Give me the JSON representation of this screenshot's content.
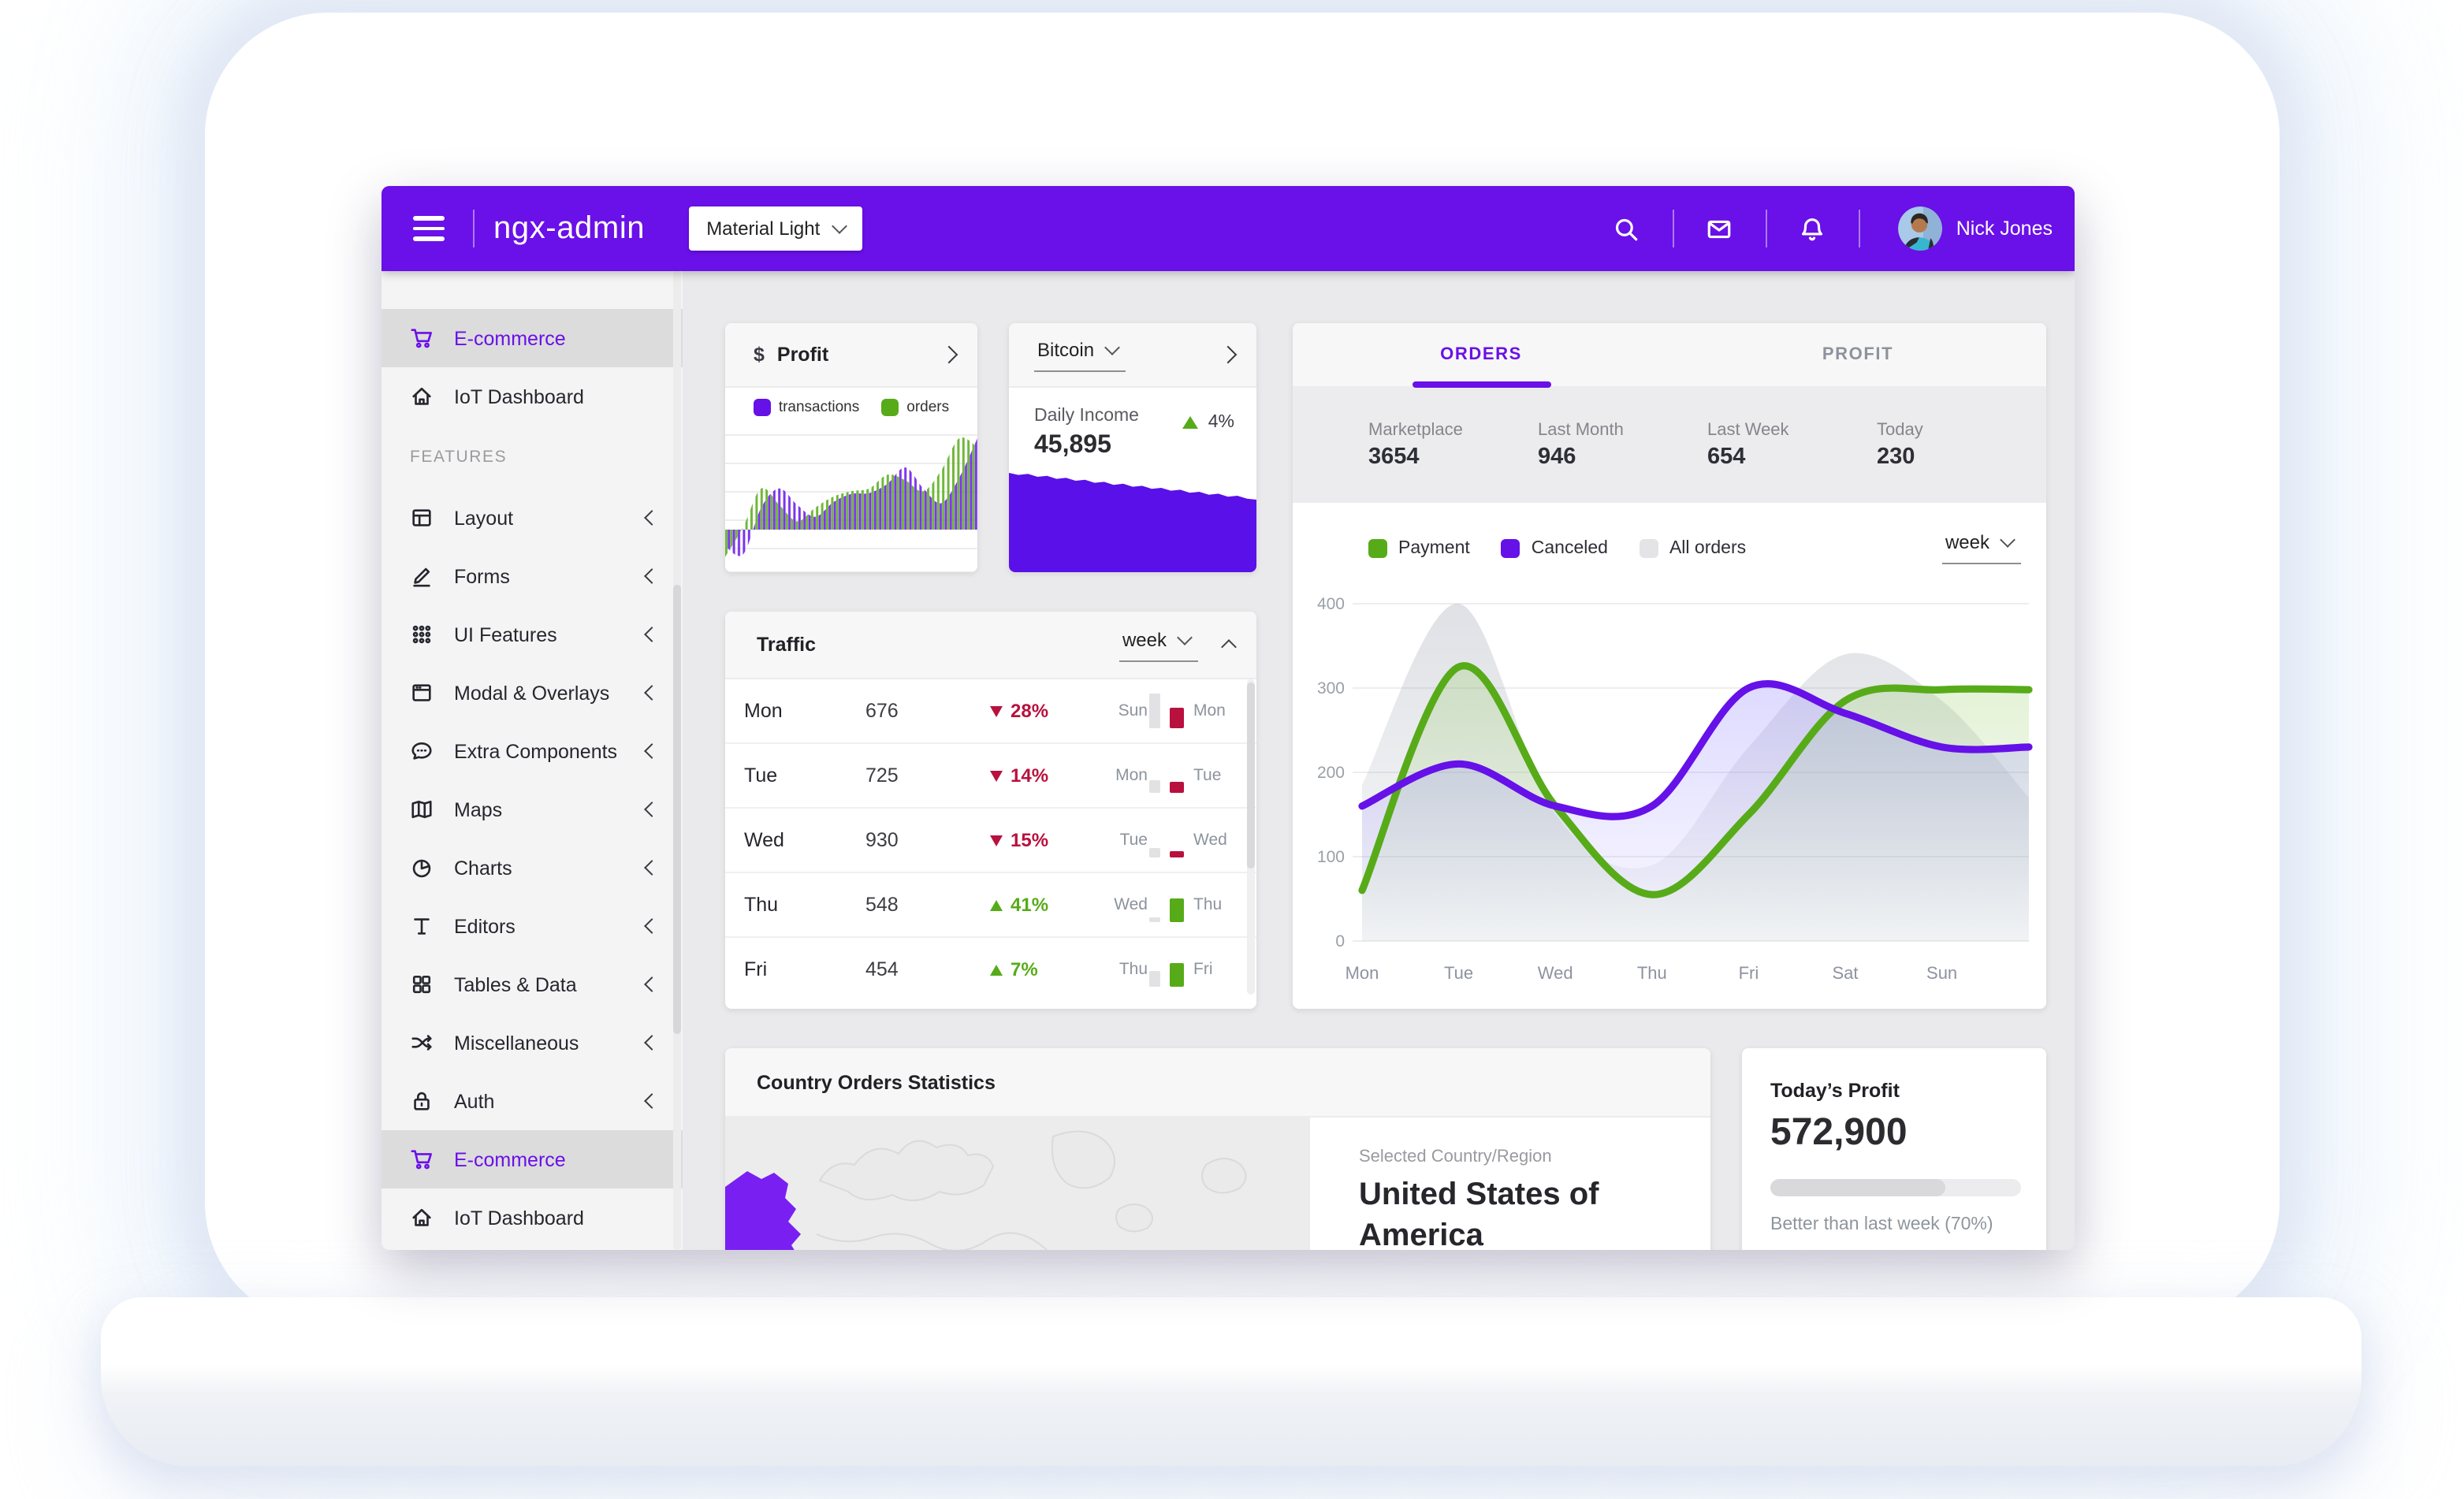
{
  "app": {
    "brand": "ngx-admin",
    "theme_select": "Material Light",
    "user": "Nick Jones"
  },
  "colors": {
    "accent": "#6a10e8",
    "chart_purple": "#6511e8",
    "green": "#57ab19",
    "danger": "#b8113e",
    "all_orders_grey": "#e4e4e6"
  },
  "sidebar": {
    "items": [
      {
        "label": "E-commerce",
        "icon": "cart",
        "active": true
      },
      {
        "label": "IoT Dashboard",
        "icon": "home"
      },
      {
        "section": "FEATURES"
      },
      {
        "label": "Layout",
        "icon": "layout",
        "expandable": true
      },
      {
        "label": "Forms",
        "icon": "pencil",
        "expandable": true
      },
      {
        "label": "UI Features",
        "icon": "keypad",
        "expandable": true
      },
      {
        "label": "Modal & Overlays",
        "icon": "modal",
        "expandable": true
      },
      {
        "label": "Extra Components",
        "icon": "bubble",
        "expandable": true
      },
      {
        "label": "Maps",
        "icon": "map",
        "expandable": true
      },
      {
        "label": "Charts",
        "icon": "pie",
        "expandable": true
      },
      {
        "label": "Editors",
        "icon": "text",
        "expandable": true
      },
      {
        "label": "Tables & Data",
        "icon": "grid",
        "expandable": true
      },
      {
        "label": "Miscellaneous",
        "icon": "shuffle",
        "expandable": true
      },
      {
        "label": "Auth",
        "icon": "lock",
        "expandable": true
      },
      {
        "label": "E-commerce",
        "icon": "cart",
        "active": true
      },
      {
        "label": "IoT Dashboard",
        "icon": "home"
      }
    ]
  },
  "profit_card": {
    "currency_symbol": "$",
    "title": "Profit",
    "legend": [
      {
        "label": "transactions",
        "color": "#6511e8"
      },
      {
        "label": "orders",
        "color": "#57ab19"
      }
    ]
  },
  "bitcoin_card": {
    "selector": "Bitcoin",
    "income_label": "Daily Income",
    "value": "45,895",
    "delta": "4%"
  },
  "orders_card": {
    "tabs": [
      {
        "label": "ORDERS",
        "active": true
      },
      {
        "label": "PROFIT",
        "active": false
      }
    ],
    "stats": [
      {
        "label": "Marketplace",
        "value": "3654"
      },
      {
        "label": "Last Month",
        "value": "946"
      },
      {
        "label": "Last Week",
        "value": "654"
      },
      {
        "label": "Today",
        "value": "230"
      }
    ],
    "legend": [
      {
        "label": "Payment",
        "color": "#57ab19"
      },
      {
        "label": "Canceled",
        "color": "#6511e8"
      },
      {
        "label": "All orders",
        "color": "#e4e4e6"
      }
    ],
    "period": "week"
  },
  "traffic_card": {
    "title": "Traffic",
    "period": "week",
    "rows": [
      {
        "day": "Mon",
        "value": "676",
        "dir": "down",
        "delta": "28%",
        "prev_day": "Sun",
        "cur_day": "Mon",
        "prev_h": 22,
        "cur_h": 13
      },
      {
        "day": "Tue",
        "value": "725",
        "dir": "down",
        "delta": "14%",
        "prev_day": "Mon",
        "cur_day": "Tue",
        "prev_h": 8,
        "cur_h": 7
      },
      {
        "day": "Wed",
        "value": "930",
        "dir": "down",
        "delta": "15%",
        "prev_day": "Tue",
        "cur_day": "Wed",
        "prev_h": 6,
        "cur_h": 4
      },
      {
        "day": "Thu",
        "value": "548",
        "dir": "up",
        "delta": "41%",
        "prev_day": "Wed",
        "cur_day": "Thu",
        "prev_h": 3,
        "cur_h": 15
      },
      {
        "day": "Fri",
        "value": "454",
        "dir": "up",
        "delta": "7%",
        "prev_day": "Thu",
        "cur_day": "Fri",
        "prev_h": 10,
        "cur_h": 15
      }
    ]
  },
  "country_card": {
    "title": "Country Orders Statistics",
    "selected_label": "Selected Country/Region",
    "selected_value": "United States of America"
  },
  "today_card": {
    "title": "Today’s Profit",
    "value": "572,900",
    "caption": "Better than last week (70%)",
    "progress_pct": 70
  },
  "chart_data": [
    {
      "id": "orders_week",
      "type": "area",
      "title": "Orders weekly trend",
      "x": [
        "Mon",
        "Tue",
        "Wed",
        "Thu",
        "Fri",
        "Sat",
        "Sun"
      ],
      "ylim": [
        0,
        400
      ],
      "yticks": [
        0,
        100,
        200,
        300,
        400
      ],
      "grid": true,
      "legend_position": "top",
      "series": [
        {
          "name": "All orders",
          "color": "#c9cdd4",
          "values": [
            185,
            400,
            150,
            90,
            230,
            340,
            285
          ],
          "edge": 170
        },
        {
          "name": "Payment",
          "color": "#57ab19",
          "values": [
            60,
            325,
            160,
            55,
            150,
            285,
            298
          ],
          "edge": 298
        },
        {
          "name": "Canceled",
          "color": "#6511e8",
          "values": [
            160,
            210,
            160,
            160,
            300,
            270,
            230
          ],
          "edge": 230
        }
      ]
    },
    {
      "id": "profit_mini",
      "type": "area",
      "hatched": true,
      "note": "relative scale 0-100, baseline 0",
      "series": [
        {
          "name": "orders",
          "color": "#57ab19",
          "values": [
            -30,
            3,
            45,
            27,
            9,
            24,
            36,
            42,
            45,
            60,
            54,
            42,
            65,
            100,
            90
          ]
        },
        {
          "name": "transactions",
          "color": "#6511e8",
          "values": [
            -18,
            -27,
            24,
            45,
            27,
            14,
            30,
            39,
            40,
            50,
            68,
            45,
            29,
            57,
            100
          ]
        }
      ]
    },
    {
      "id": "bitcoin_mini",
      "type": "area",
      "note": "relative scale 0-100",
      "series": [
        {
          "name": "Daily Income",
          "color": "#5a10e8",
          "values": [
            100,
            98,
            99,
            96,
            97,
            94,
            95,
            92,
            93,
            90,
            91,
            88,
            89,
            86,
            87,
            84,
            85,
            82,
            83,
            80,
            81,
            78,
            79,
            76,
            77,
            74,
            73
          ]
        }
      ]
    }
  ]
}
